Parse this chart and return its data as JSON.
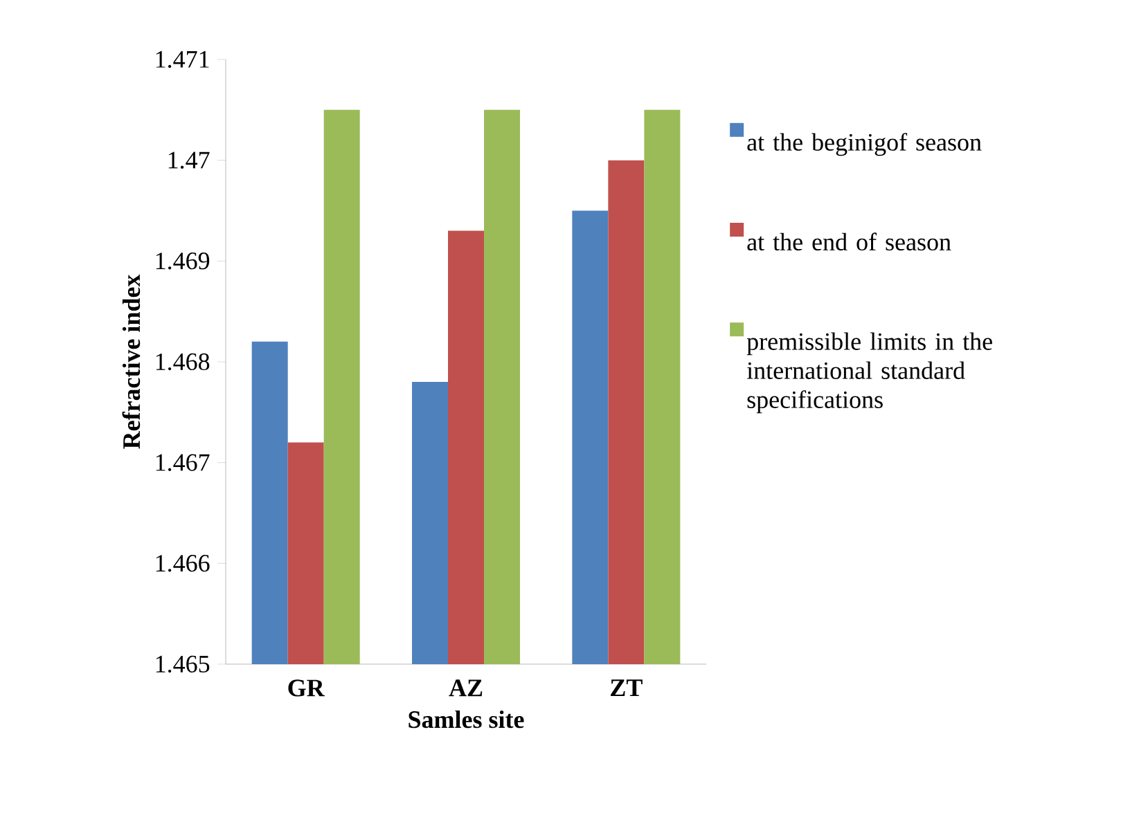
{
  "chart_data": {
    "type": "bar",
    "xlabel": "Samles site",
    "ylabel": "Refractive index",
    "categories": [
      "GR",
      "AZ",
      "ZT"
    ],
    "series": [
      {
        "name": "at the beginigof season",
        "color": "#4f81bd",
        "values": [
          1.4682,
          1.4678,
          1.4695
        ]
      },
      {
        "name": "at the end of season",
        "color": "#c0504d",
        "values": [
          1.4672,
          1.4693,
          1.47
        ]
      },
      {
        "name": "premissible limits in the international standard specifications",
        "color": "#9bbb59",
        "values": [
          1.4705,
          1.4705,
          1.4705
        ]
      }
    ],
    "ylim": [
      1.465,
      1.471
    ],
    "yticks": [
      1.465,
      1.466,
      1.467,
      1.468,
      1.469,
      {
        "value": 1.47,
        "label": "1.47"
      },
      1.471
    ],
    "grid": false,
    "legend": "right"
  }
}
